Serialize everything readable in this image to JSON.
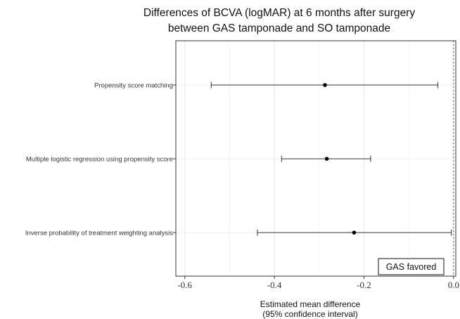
{
  "chart_data": {
    "type": "forest",
    "title_lines": [
      "Differences of BCVA (logMAR) at 6 months after surgery",
      "between GAS tamponade and SO tamponade"
    ],
    "xlabel_lines": [
      "Estimated mean difference",
      "(95% confidence interval)"
    ],
    "ylabel": "",
    "xlim": [
      -0.62,
      0.005
    ],
    "x_ticks": [
      -0.6,
      -0.4,
      -0.2,
      0.0
    ],
    "x_tick_labels": [
      "-0.6",
      "-0.4",
      "-0.2",
      "0.0"
    ],
    "reference_line": 0.0,
    "grid": true,
    "annotation": "GAS favored",
    "rows": [
      {
        "label": "Propensity score matching",
        "estimate": -0.287,
        "lower": -0.541,
        "upper": -0.035
      },
      {
        "label": "Multiple logistic regression using propensity score",
        "estimate": -0.283,
        "lower": -0.384,
        "upper": -0.185
      },
      {
        "label": "Inverse probability of treatment weighting analysis",
        "estimate": -0.222,
        "lower": -0.438,
        "upper": -0.005
      }
    ]
  }
}
